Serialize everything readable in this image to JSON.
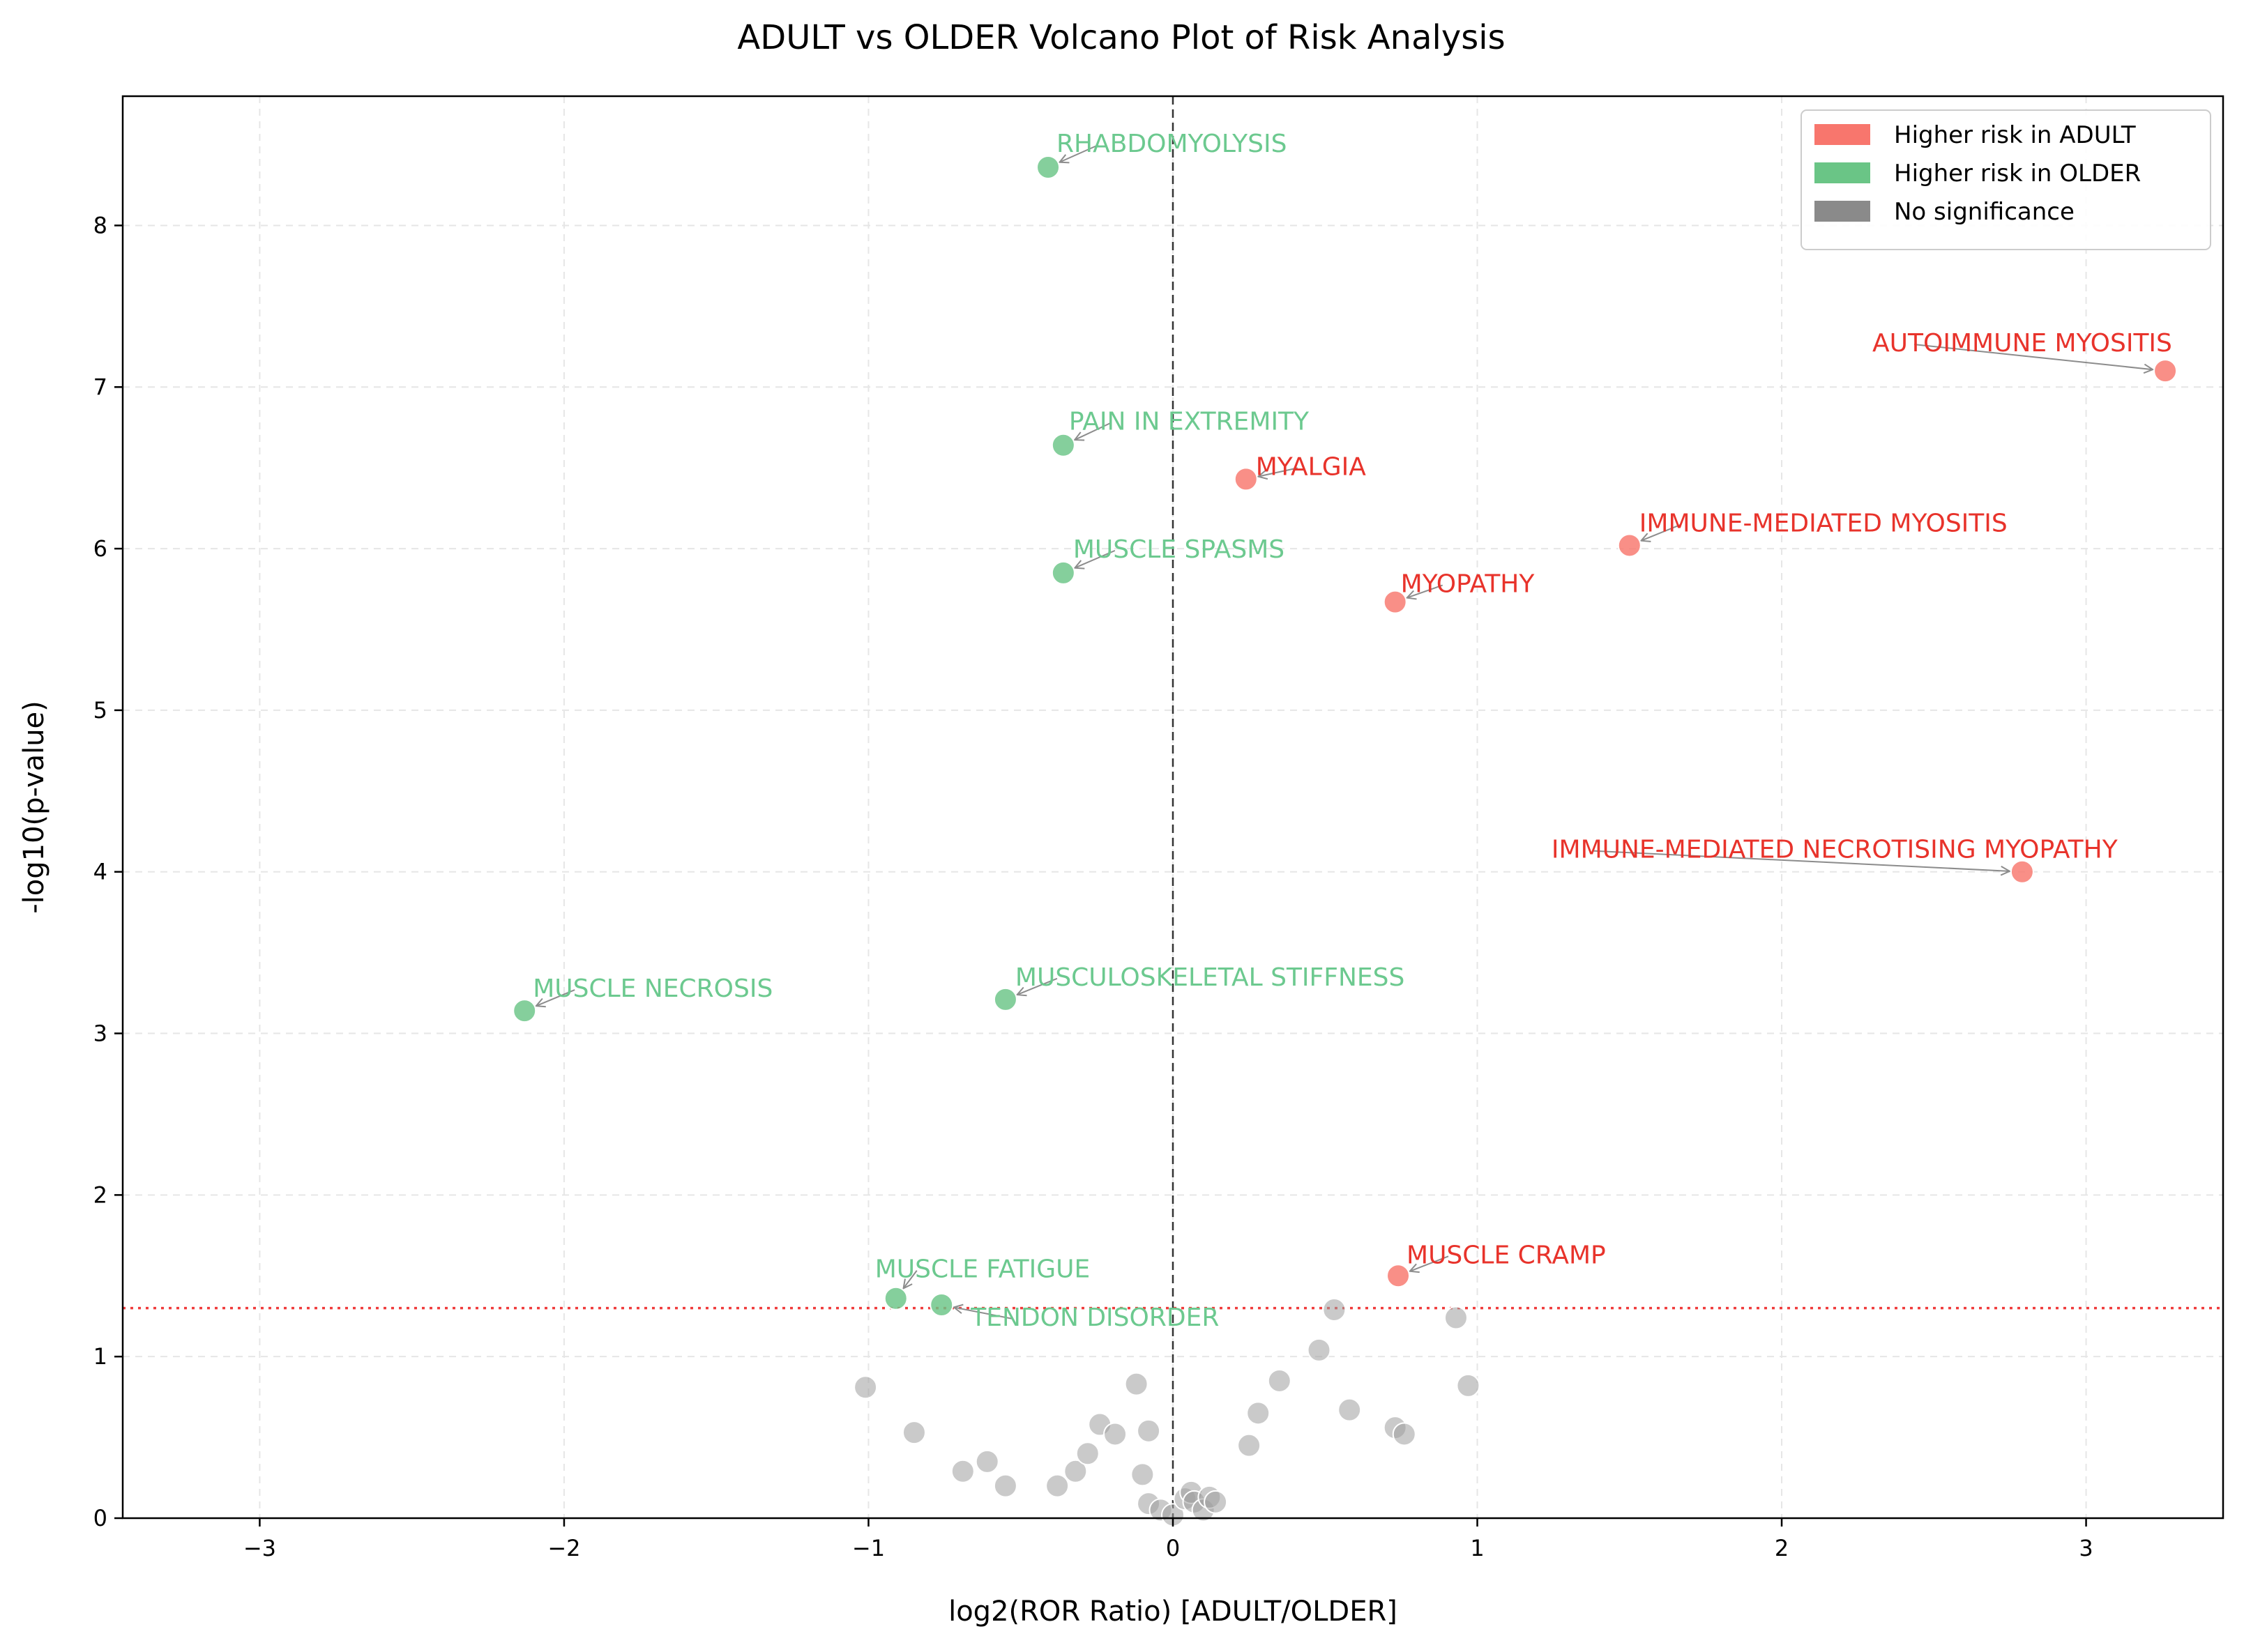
{
  "chart_data": {
    "type": "scatter",
    "title": "ADULT vs OLDER Volcano Plot of Risk Analysis",
    "xlabel": "log2(ROR Ratio) [ADULT/OLDER]",
    "ylabel": "-log10(p-value)",
    "xlim": [
      -3.45,
      3.45
    ],
    "ylim": [
      0,
      8.8
    ],
    "x_ticks": [
      -3,
      -2,
      -1,
      0,
      1,
      2,
      3
    ],
    "x_tick_labels": [
      "−3",
      "−2",
      "−1",
      "0",
      "1",
      "2",
      "3"
    ],
    "y_ticks": [
      0,
      1,
      2,
      3,
      4,
      5,
      6,
      7,
      8
    ],
    "y_tick_labels": [
      "0",
      "1",
      "2",
      "3",
      "4",
      "5",
      "6",
      "7",
      "8"
    ],
    "grid": true,
    "legend_position": "top-right",
    "significance_threshold_y": 1.3,
    "vertical_reference_x": 0,
    "colors": {
      "adult": "#f8766d",
      "older": "#6ac586",
      "none": "#9e9e9e",
      "label_adult": "#e8332b",
      "label_older": "#6cc98f",
      "threshold_line": "#f03c3c"
    },
    "legend": [
      {
        "label": "Higher risk in ADULT",
        "group": "adult",
        "color": "#f8766d"
      },
      {
        "label": "Higher risk in OLDER",
        "group": "older",
        "color": "#6ac586"
      },
      {
        "label": "No significance",
        "group": "none",
        "color": "#8a8a8a"
      }
    ],
    "series": [
      {
        "group": "adult",
        "points": [
          {
            "x": 3.26,
            "y": 7.1,
            "label": "AUTOIMMUNE MYOSITIS"
          },
          {
            "x": 0.24,
            "y": 6.43,
            "label": "MYALGIA"
          },
          {
            "x": 1.5,
            "y": 6.02,
            "label": "IMMUNE-MEDIATED MYOSITIS"
          },
          {
            "x": 0.73,
            "y": 5.67,
            "label": "MYOPATHY"
          },
          {
            "x": 2.79,
            "y": 4.0,
            "label": "IMMUNE-MEDIATED NECROTISING MYOPATHY"
          },
          {
            "x": 0.74,
            "y": 1.5,
            "label": "MUSCLE CRAMP"
          }
        ]
      },
      {
        "group": "older",
        "points": [
          {
            "x": -0.41,
            "y": 8.36,
            "label": "RHABDOMYOLYSIS"
          },
          {
            "x": -0.36,
            "y": 6.64,
            "label": "PAIN IN EXTREMITY"
          },
          {
            "x": -0.36,
            "y": 5.85,
            "label": "MUSCLE SPASMS"
          },
          {
            "x": -0.55,
            "y": 3.21,
            "label": "MUSCULOSKELETAL STIFFNESS"
          },
          {
            "x": -2.13,
            "y": 3.14,
            "label": "MUSCLE NECROSIS"
          },
          {
            "x": -0.91,
            "y": 1.36,
            "label": "MUSCLE FATIGUE"
          },
          {
            "x": -0.76,
            "y": 1.32,
            "label": "TENDON DISORDER"
          }
        ]
      },
      {
        "group": "none",
        "points": [
          {
            "x": -1.01,
            "y": 0.81
          },
          {
            "x": -0.85,
            "y": 0.53
          },
          {
            "x": -0.69,
            "y": 0.29
          },
          {
            "x": -0.61,
            "y": 0.35
          },
          {
            "x": -0.55,
            "y": 0.2
          },
          {
            "x": -0.38,
            "y": 0.2
          },
          {
            "x": -0.32,
            "y": 0.29
          },
          {
            "x": -0.28,
            "y": 0.4
          },
          {
            "x": -0.24,
            "y": 0.58
          },
          {
            "x": -0.19,
            "y": 0.52
          },
          {
            "x": -0.12,
            "y": 0.83
          },
          {
            "x": -0.1,
            "y": 0.27
          },
          {
            "x": -0.08,
            "y": 0.54
          },
          {
            "x": -0.08,
            "y": 0.09
          },
          {
            "x": -0.04,
            "y": 0.05
          },
          {
            "x": 0.0,
            "y": 0.02
          },
          {
            "x": 0.04,
            "y": 0.12
          },
          {
            "x": 0.06,
            "y": 0.16
          },
          {
            "x": 0.07,
            "y": 0.1
          },
          {
            "x": 0.1,
            "y": 0.05
          },
          {
            "x": 0.12,
            "y": 0.13
          },
          {
            "x": 0.14,
            "y": 0.1
          },
          {
            "x": 0.25,
            "y": 0.45
          },
          {
            "x": 0.28,
            "y": 0.65
          },
          {
            "x": 0.35,
            "y": 0.85
          },
          {
            "x": 0.48,
            "y": 1.04
          },
          {
            "x": 0.53,
            "y": 1.29
          },
          {
            "x": 0.58,
            "y": 0.67
          },
          {
            "x": 0.73,
            "y": 0.56
          },
          {
            "x": 0.76,
            "y": 0.52
          },
          {
            "x": 0.93,
            "y": 1.24
          },
          {
            "x": 0.97,
            "y": 0.82
          }
        ]
      }
    ]
  }
}
